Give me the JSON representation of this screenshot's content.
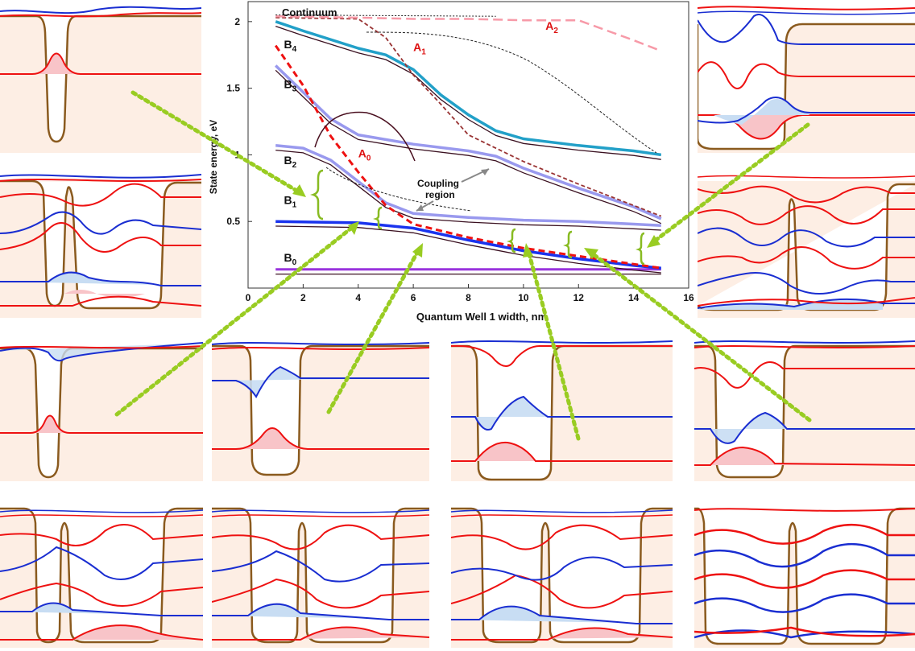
{
  "chart_data": {
    "type": "line",
    "xlabel": "Quantum Well 1 width, nm",
    "ylabel": "State energy, eV",
    "xlim": [
      0,
      16
    ],
    "ylim": [
      0,
      2.15
    ],
    "x_ticks": [
      0,
      2,
      4,
      6,
      8,
      10,
      12,
      14,
      16
    ],
    "y_ticks": [
      0.5,
      1,
      1.5,
      2
    ],
    "x_tick_labels": [
      "0",
      "2",
      "4",
      "6",
      "8",
      "10",
      "12",
      "14",
      "16"
    ],
    "y_tick_labels": [
      "0.5",
      "1",
      "1.5",
      "2"
    ],
    "series": [
      {
        "name": "B0",
        "color": "#9933dd",
        "x": [
          1,
          15
        ],
        "y": [
          0.14,
          0.14
        ]
      },
      {
        "name": "B1",
        "color": "#1a33ee",
        "x": [
          1,
          4,
          6,
          8,
          10,
          12,
          14,
          15
        ],
        "y": [
          0.5,
          0.49,
          0.45,
          0.36,
          0.28,
          0.22,
          0.17,
          0.15
        ]
      },
      {
        "name": "B2",
        "color": "#9999ee",
        "x": [
          1,
          2,
          3,
          4,
          5,
          6,
          8,
          10,
          12,
          14,
          15
        ],
        "y": [
          1.07,
          1.05,
          0.96,
          0.8,
          0.64,
          0.56,
          0.53,
          0.51,
          0.5,
          0.48,
          0.47
        ]
      },
      {
        "name": "B3",
        "color": "#9999ee",
        "x": [
          1,
          2,
          3,
          4,
          6,
          8,
          9,
          10,
          12,
          14,
          15
        ],
        "y": [
          1.67,
          1.47,
          1.27,
          1.15,
          1.08,
          1.03,
          0.99,
          0.9,
          0.75,
          0.61,
          0.52
        ]
      },
      {
        "name": "B4",
        "color": "#22a0c8",
        "x": [
          1,
          2,
          4,
          5,
          6,
          7,
          8,
          9,
          10,
          12,
          14,
          15
        ],
        "y": [
          2.0,
          1.93,
          1.8,
          1.75,
          1.64,
          1.45,
          1.3,
          1.18,
          1.12,
          1.07,
          1.03,
          1.0
        ]
      },
      {
        "name": "A0",
        "color": "#ee1111",
        "x": [
          1,
          2,
          3,
          4,
          5,
          6,
          8,
          10,
          12,
          14,
          15
        ],
        "y": [
          1.82,
          1.52,
          1.14,
          0.87,
          0.62,
          0.48,
          0.38,
          0.3,
          0.24,
          0.18,
          0.15
        ]
      },
      {
        "name": "A1",
        "color": "#993333",
        "x": [
          1,
          4,
          5,
          6,
          7,
          8,
          10,
          12,
          14,
          15
        ],
        "y": [
          2.03,
          2.02,
          1.88,
          1.6,
          1.38,
          1.15,
          0.95,
          0.78,
          0.62,
          0.54
        ]
      },
      {
        "name": "A2",
        "color": "#f79aa8",
        "x": [
          1,
          4,
          6,
          8,
          10,
          12,
          14,
          15
        ],
        "y": [
          2.04,
          2.03,
          2.02,
          2.02,
          2.01,
          2.01,
          1.86,
          1.78
        ]
      }
    ],
    "curve_labels": [
      {
        "text": "B",
        "sub": "0",
        "color": "#111111"
      },
      {
        "text": "B",
        "sub": "1",
        "color": "#111111"
      },
      {
        "text": "B",
        "sub": "2",
        "color": "#111111"
      },
      {
        "text": "B",
        "sub": "3",
        "color": "#111111"
      },
      {
        "text": "B",
        "sub": "4",
        "color": "#111111"
      },
      {
        "text": "A",
        "sub": "0",
        "color": "#dd1111"
      },
      {
        "text": "A",
        "sub": "1",
        "color": "#dd1111"
      },
      {
        "text": "A",
        "sub": "2",
        "color": "#dd1111"
      }
    ],
    "annotations": [
      "Continuum",
      "Coupling",
      "region"
    ]
  },
  "colors": {
    "well_fill": "#fdeee4",
    "well_edge": "#8a5a1e",
    "red": "#ee1111",
    "blue": "#1a2ed1",
    "arrow": "#99cc22",
    "brace": "#88bb22",
    "red_fill": "#f8c4c8",
    "blue_fill": "#c8ddf3"
  }
}
